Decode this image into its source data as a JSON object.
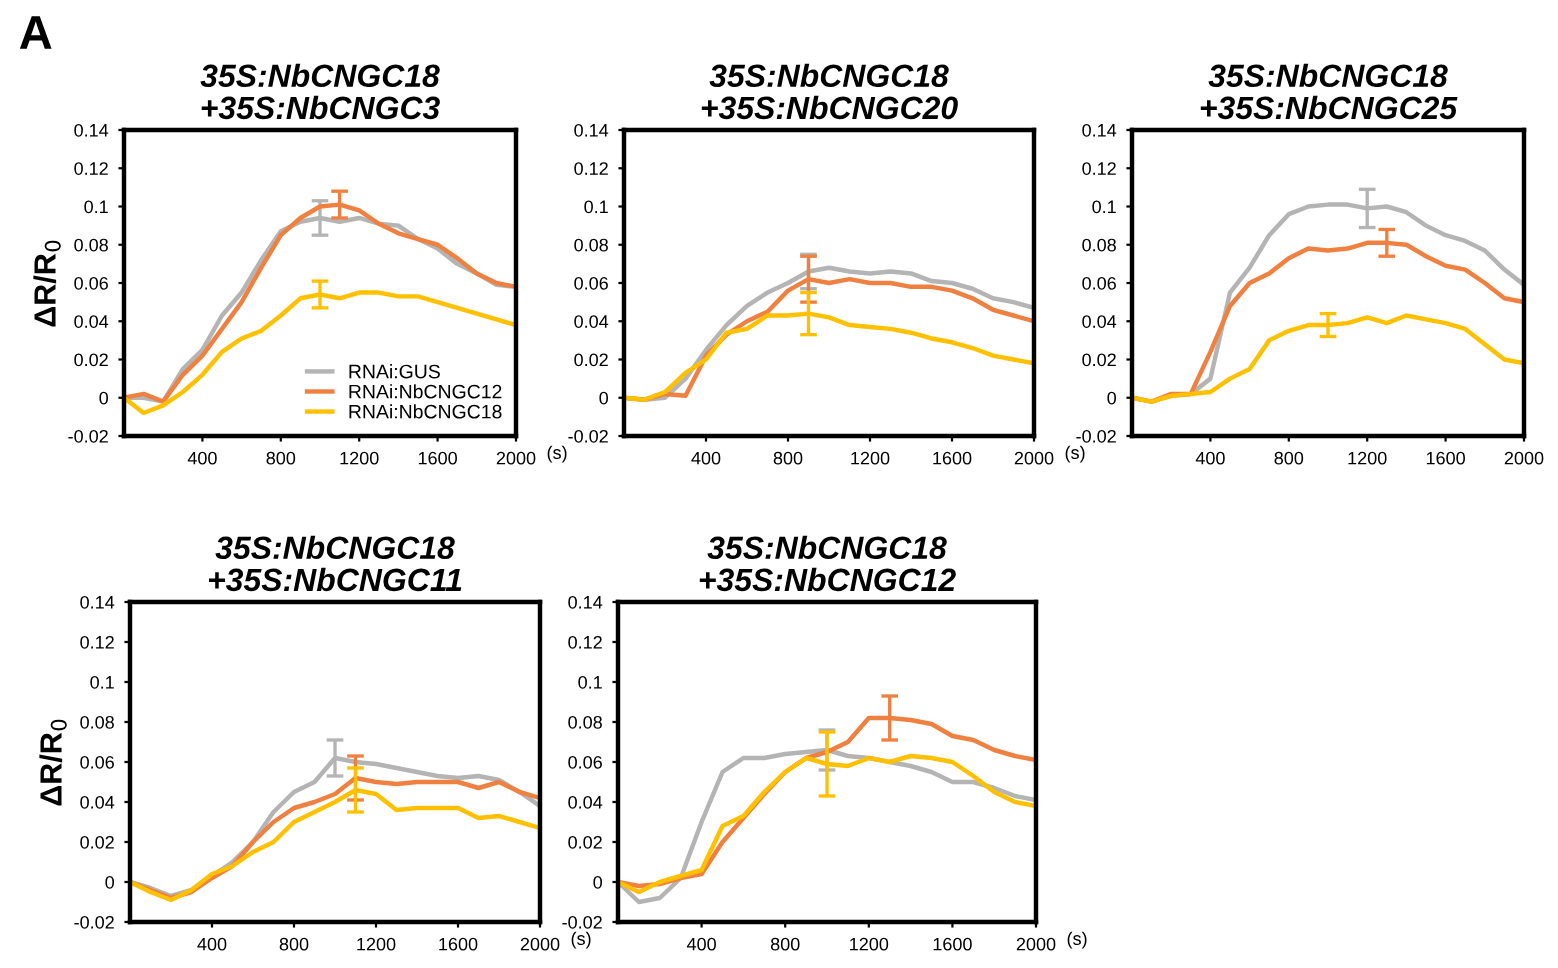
{
  "chart_data": [
    {
      "type": "line",
      "title": "35S:NbCNGC18\n+35S:NbCNGC3",
      "ylabel": "ΔR/R$_{0}$",
      "xlabel": "(s)",
      "annotations": [
        "A"
      ],
      "legend": "bottom right",
      "x": [
        0,
        100,
        200,
        300,
        400,
        500,
        600,
        700,
        800,
        900,
        1000,
        1100,
        1200,
        1300,
        1400,
        1500,
        1600,
        1700,
        1800,
        1900,
        2000
      ],
      "xlim": [
        0,
        2000
      ],
      "xticks": [
        400,
        800,
        1200,
        1600,
        2000
      ],
      "ylim": [
        -0.02,
        0.14
      ],
      "yticks": [
        -0.02,
        0,
        0.02,
        0.04,
        0.06,
        0.08,
        0.1,
        0.12,
        0.14
      ],
      "series": [
        {
          "name": "RNAi:GUS",
          "color": "#b4b4b4",
          "values": [
            0,
            0,
            -0.002,
            0.015,
            0.025,
            0.043,
            0.055,
            0.072,
            0.087,
            0.092,
            0.094,
            0.092,
            0.094,
            0.091,
            0.09,
            0.083,
            0.078,
            0.07,
            0.065,
            0.059,
            0.058
          ],
          "errors": [
            null,
            null,
            null,
            null,
            null,
            null,
            null,
            null,
            null,
            null,
            0.009,
            null,
            null,
            null,
            null,
            null,
            null,
            null,
            null,
            null,
            null
          ]
        },
        {
          "name": "RNAi:NbCNGC12",
          "color": "#f08040",
          "values": [
            0,
            0.002,
            -0.002,
            0.012,
            0.022,
            0.036,
            0.05,
            0.068,
            0.085,
            0.094,
            0.1,
            0.101,
            0.098,
            0.091,
            0.086,
            0.083,
            0.08,
            0.073,
            0.065,
            0.06,
            0.058
          ],
          "errors": [
            null,
            null,
            null,
            null,
            null,
            null,
            null,
            null,
            null,
            null,
            null,
            0.007,
            null,
            null,
            null,
            null,
            null,
            null,
            null,
            null,
            null
          ]
        },
        {
          "name": "RNAi:NbCNGC18",
          "color": "#ffc000",
          "values": [
            0,
            -0.008,
            -0.004,
            0.003,
            0.012,
            0.024,
            0.031,
            0.035,
            0.043,
            0.052,
            0.054,
            0.052,
            0.055,
            0.055,
            0.053,
            0.053,
            0.05,
            0.047,
            0.044,
            0.041,
            0.038
          ],
          "errors": [
            null,
            null,
            null,
            null,
            null,
            null,
            null,
            null,
            null,
            null,
            0.007,
            null,
            null,
            null,
            null,
            null,
            null,
            null,
            null,
            null,
            null
          ]
        }
      ]
    },
    {
      "type": "line",
      "title": "35S:NbCNGC18\n+35S:NbCNGC20",
      "xlabel": "(s)",
      "x": [
        0,
        100,
        200,
        300,
        400,
        500,
        600,
        700,
        800,
        900,
        1000,
        1100,
        1200,
        1300,
        1400,
        1500,
        1600,
        1700,
        1800,
        1900,
        2000
      ],
      "xlim": [
        0,
        2000
      ],
      "xticks": [
        400,
        800,
        1200,
        1600,
        2000
      ],
      "ylim": [
        -0.02,
        0.14
      ],
      "yticks": [
        -0.02,
        0,
        0.02,
        0.04,
        0.06,
        0.08,
        0.1,
        0.12,
        0.14
      ],
      "series": [
        {
          "color": "#b4b4b4",
          "values": [
            0,
            -0.001,
            0,
            0.01,
            0.025,
            0.038,
            0.048,
            0.055,
            0.06,
            0.066,
            0.068,
            0.066,
            0.065,
            0.066,
            0.065,
            0.061,
            0.06,
            0.057,
            0.052,
            0.05,
            0.047
          ],
          "errors": [
            null,
            null,
            null,
            null,
            null,
            null,
            null,
            null,
            null,
            0.009,
            null,
            null,
            null,
            null,
            null,
            null,
            null,
            null,
            null,
            null,
            null
          ]
        },
        {
          "color": "#f08040",
          "values": [
            0,
            -0.001,
            0.002,
            0.001,
            0.022,
            0.033,
            0.04,
            0.045,
            0.056,
            0.062,
            0.06,
            0.062,
            0.06,
            0.06,
            0.058,
            0.058,
            0.056,
            0.052,
            0.046,
            0.043,
            0.04
          ],
          "errors": [
            null,
            null,
            null,
            null,
            null,
            null,
            null,
            null,
            null,
            0.012,
            null,
            null,
            null,
            null,
            null,
            null,
            null,
            null,
            null,
            null,
            null
          ]
        },
        {
          "color": "#ffc000",
          "values": [
            0,
            -0.001,
            0.003,
            0.013,
            0.02,
            0.034,
            0.036,
            0.043,
            0.043,
            0.044,
            0.042,
            0.038,
            0.037,
            0.036,
            0.034,
            0.031,
            0.029,
            0.026,
            0.022,
            0.02,
            0.018
          ],
          "errors": [
            null,
            null,
            null,
            null,
            null,
            null,
            null,
            null,
            null,
            0.011,
            null,
            null,
            null,
            null,
            null,
            null,
            null,
            null,
            null,
            null,
            null
          ]
        }
      ]
    },
    {
      "type": "line",
      "title": "35S:NbCNGC18\n+35S:NbCNGC25",
      "x": [
        0,
        100,
        200,
        300,
        400,
        500,
        600,
        700,
        800,
        900,
        1000,
        1100,
        1200,
        1300,
        1400,
        1500,
        1600,
        1700,
        1800,
        1900,
        2000
      ],
      "xlim": [
        0,
        2000
      ],
      "xticks": [
        400,
        800,
        1200,
        1600,
        2000
      ],
      "ylim": [
        -0.02,
        0.14
      ],
      "yticks": [
        -0.02,
        0,
        0.02,
        0.04,
        0.06,
        0.08,
        0.1,
        0.12,
        0.14
      ],
      "series": [
        {
          "color": "#b4b4b4",
          "values": [
            0,
            -0.002,
            0.001,
            0.002,
            0.01,
            0.055,
            0.068,
            0.085,
            0.096,
            0.1,
            0.101,
            0.101,
            0.099,
            0.1,
            0.097,
            0.09,
            0.085,
            0.082,
            0.077,
            0.067,
            0.059
          ],
          "errors": [
            null,
            null,
            null,
            null,
            null,
            null,
            null,
            null,
            null,
            null,
            null,
            null,
            0.01,
            null,
            null,
            null,
            null,
            null,
            null,
            null,
            null
          ]
        },
        {
          "color": "#f08040",
          "values": [
            0,
            -0.002,
            0.002,
            0.002,
            0.024,
            0.048,
            0.06,
            0.065,
            0.073,
            0.078,
            0.077,
            0.078,
            0.081,
            0.081,
            0.08,
            0.074,
            0.069,
            0.067,
            0.06,
            0.052,
            0.05
          ],
          "errors": [
            null,
            null,
            null,
            null,
            null,
            null,
            null,
            null,
            null,
            null,
            null,
            null,
            null,
            0.007,
            null,
            null,
            null,
            null,
            null,
            null,
            null
          ]
        },
        {
          "color": "#ffc000",
          "values": [
            0,
            -0.002,
            0.001,
            0.002,
            0.003,
            0.01,
            0.015,
            0.03,
            0.035,
            0.038,
            0.038,
            0.039,
            0.042,
            0.039,
            0.043,
            0.041,
            0.039,
            0.036,
            0.028,
            0.02,
            0.018
          ],
          "errors": [
            null,
            null,
            null,
            null,
            null,
            null,
            null,
            null,
            null,
            null,
            0.006,
            null,
            null,
            null,
            null,
            null,
            null,
            null,
            null,
            null,
            null
          ]
        }
      ]
    },
    {
      "type": "line",
      "title": "35S:NbCNGC18\n+35S:NbCNGC11",
      "ylabel": "ΔR/R$_{0}$",
      "xlabel": "(s)",
      "x": [
        0,
        100,
        200,
        300,
        400,
        500,
        600,
        700,
        800,
        900,
        1000,
        1100,
        1200,
        1300,
        1400,
        1500,
        1600,
        1700,
        1800,
        1900,
        2000
      ],
      "xlim": [
        0,
        2000
      ],
      "xticks": [
        400,
        800,
        1200,
        1600,
        2000
      ],
      "ylim": [
        -0.02,
        0.14
      ],
      "yticks": [
        -0.02,
        0,
        0.02,
        0.04,
        0.06,
        0.08,
        0.1,
        0.12,
        0.14
      ],
      "series": [
        {
          "color": "#b4b4b4",
          "values": [
            0,
            -0.003,
            -0.007,
            -0.004,
            0.003,
            0.01,
            0.02,
            0.035,
            0.045,
            0.05,
            0.062,
            0.06,
            0.059,
            0.057,
            0.055,
            0.053,
            0.052,
            0.053,
            0.051,
            0.045,
            0.038
          ],
          "errors": [
            null,
            null,
            null,
            null,
            null,
            null,
            null,
            null,
            null,
            null,
            0.009,
            null,
            null,
            null,
            null,
            null,
            null,
            null,
            null,
            null,
            null
          ]
        },
        {
          "color": "#f08040",
          "values": [
            0,
            -0.004,
            -0.008,
            -0.005,
            0.002,
            0.008,
            0.02,
            0.03,
            0.037,
            0.04,
            0.044,
            0.052,
            0.05,
            0.049,
            0.05,
            0.05,
            0.05,
            0.047,
            0.05,
            0.045,
            0.042
          ],
          "errors": [
            null,
            null,
            null,
            null,
            null,
            null,
            null,
            null,
            null,
            null,
            null,
            0.011,
            null,
            null,
            null,
            null,
            null,
            null,
            null,
            null,
            null
          ]
        },
        {
          "color": "#ffc000",
          "values": [
            0,
            -0.005,
            -0.009,
            -0.004,
            0.004,
            0.008,
            0.015,
            0.02,
            0.03,
            0.035,
            0.04,
            0.046,
            0.044,
            0.036,
            0.037,
            0.037,
            0.037,
            0.032,
            0.033,
            0.03,
            0.027
          ],
          "errors": [
            null,
            null,
            null,
            null,
            null,
            null,
            null,
            null,
            null,
            null,
            null,
            0.011,
            null,
            null,
            null,
            null,
            null,
            null,
            null,
            null,
            null
          ]
        }
      ]
    },
    {
      "type": "line",
      "title": "35S:NbCNGC18\n+35S:NbCNGC12",
      "xlabel": "(s)",
      "x": [
        0,
        100,
        200,
        300,
        400,
        500,
        600,
        700,
        800,
        900,
        1000,
        1100,
        1200,
        1300,
        1400,
        1500,
        1600,
        1700,
        1800,
        1900,
        2000
      ],
      "xlim": [
        0,
        2000
      ],
      "xticks": [
        400,
        800,
        1200,
        1600,
        2000
      ],
      "ylim": [
        -0.02,
        0.14
      ],
      "yticks": [
        -0.02,
        0,
        0.02,
        0.04,
        0.06,
        0.08,
        0.1,
        0.12,
        0.14
      ],
      "series": [
        {
          "color": "#b4b4b4",
          "values": [
            0,
            -0.01,
            -0.008,
            0.002,
            0.03,
            0.055,
            0.062,
            0.062,
            0.064,
            0.065,
            0.066,
            0.063,
            0.062,
            0.06,
            0.058,
            0.055,
            0.05,
            0.05,
            0.047,
            0.043,
            0.041
          ],
          "errors": [
            null,
            null,
            null,
            null,
            null,
            null,
            null,
            null,
            null,
            null,
            0.01,
            null,
            null,
            null,
            null,
            null,
            null,
            null,
            null,
            null,
            null
          ]
        },
        {
          "color": "#f08040",
          "values": [
            0,
            -0.002,
            -0.001,
            0.002,
            0.004,
            0.02,
            0.032,
            0.044,
            0.055,
            0.062,
            0.065,
            0.07,
            0.082,
            0.082,
            0.081,
            0.079,
            0.073,
            0.071,
            0.066,
            0.063,
            0.061
          ],
          "errors": [
            null,
            null,
            null,
            null,
            null,
            null,
            null,
            null,
            null,
            null,
            null,
            null,
            null,
            0.011,
            null,
            null,
            null,
            null,
            null,
            null,
            null
          ]
        },
        {
          "color": "#ffc000",
          "values": [
            0,
            -0.005,
            0,
            0.003,
            0.006,
            0.028,
            0.033,
            0.045,
            0.055,
            0.062,
            0.059,
            0.058,
            0.062,
            0.06,
            0.063,
            0.062,
            0.06,
            0.053,
            0.045,
            0.04,
            0.038
          ],
          "errors": [
            null,
            null,
            null,
            null,
            null,
            null,
            null,
            null,
            null,
            null,
            0.016,
            null,
            null,
            null,
            null,
            null,
            null,
            null,
            null,
            null,
            null
          ]
        }
      ]
    }
  ]
}
